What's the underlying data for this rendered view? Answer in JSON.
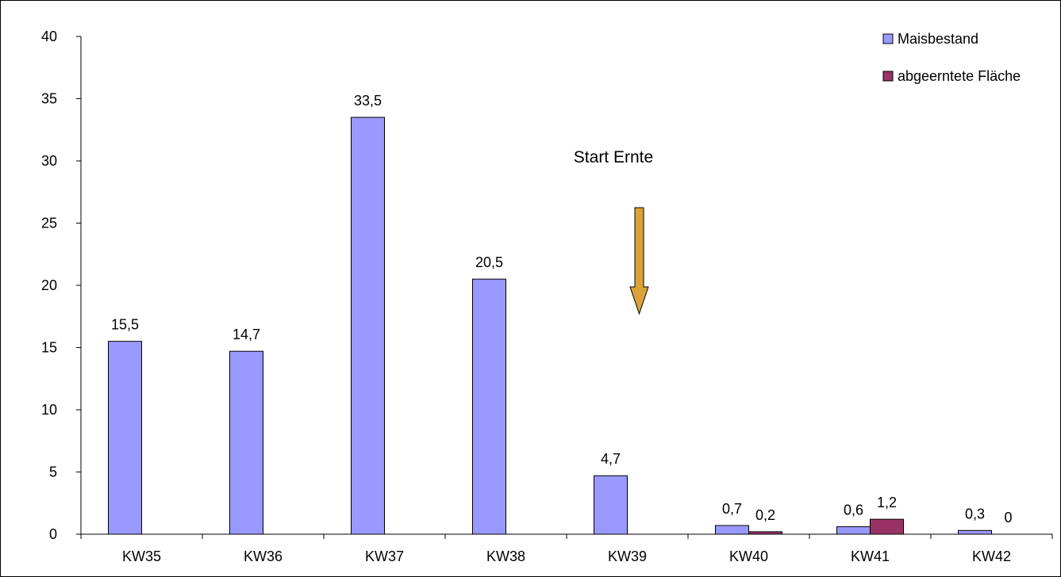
{
  "chart_data": {
    "type": "bar",
    "categories": [
      "KW35",
      "KW36",
      "KW37",
      "KW38",
      "KW39",
      "KW40",
      "KW41",
      "KW42"
    ],
    "series": [
      {
        "name": "Maisbestand",
        "color": "#9999ff",
        "values": [
          15.5,
          14.7,
          33.5,
          20.5,
          4.7,
          0.7,
          0.6,
          0.3
        ],
        "labels": [
          "15,5",
          "14,7",
          "33,5",
          "20,5",
          "4,7",
          "0,7",
          "0,6",
          "0,3"
        ]
      },
      {
        "name": "abgeerntete Fläche",
        "color": "#993366",
        "values": [
          null,
          null,
          null,
          null,
          null,
          0.2,
          1.2,
          0
        ],
        "labels": [
          "",
          "",
          "",
          "",
          "",
          "0,2",
          "1,2",
          "0"
        ]
      }
    ],
    "yticks": [
      "0",
      "5",
      "10",
      "15",
      "20",
      "25",
      "30",
      "35",
      "40"
    ],
    "ylim": [
      0,
      40
    ],
    "grid": false,
    "legend_position": "top-right",
    "annotation": {
      "text": "Start Ernte",
      "arrow_color": "#d9a33a",
      "arrow_direction": "down"
    }
  }
}
